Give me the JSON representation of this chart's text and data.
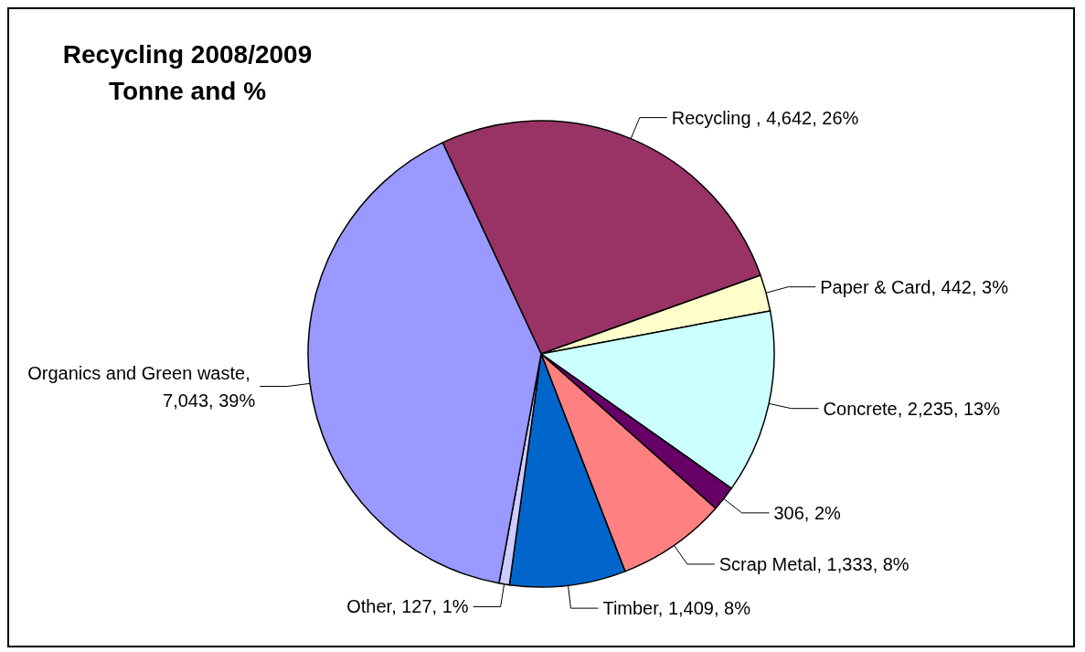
{
  "chart_data": {
    "type": "pie",
    "title": "Recycling 2008/2009",
    "subtitle": "Tonne and %",
    "categories": [
      "Recycling ",
      "Paper & Card",
      "Concrete",
      null,
      "Scrap Metal",
      "Timber",
      "Other",
      "Organics and Green waste"
    ],
    "values": [
      4642,
      442,
      2235,
      306,
      1333,
      1409,
      127,
      7043
    ],
    "value_labels": [
      ", 4,642, 26%",
      ", 442, 3%",
      ", 2,235, 13%",
      "306, 2%",
      ", 1,333, 8%",
      ", 1,409, 8%",
      ", 127, 1%",
      ", 7,043, 39%"
    ],
    "colors": [
      "#993366",
      "#ffffcc",
      "#ccffff",
      "#660066",
      "#ff8080",
      "#0066cc",
      "#ccccff",
      "#9999ff"
    ],
    "legend": false
  }
}
